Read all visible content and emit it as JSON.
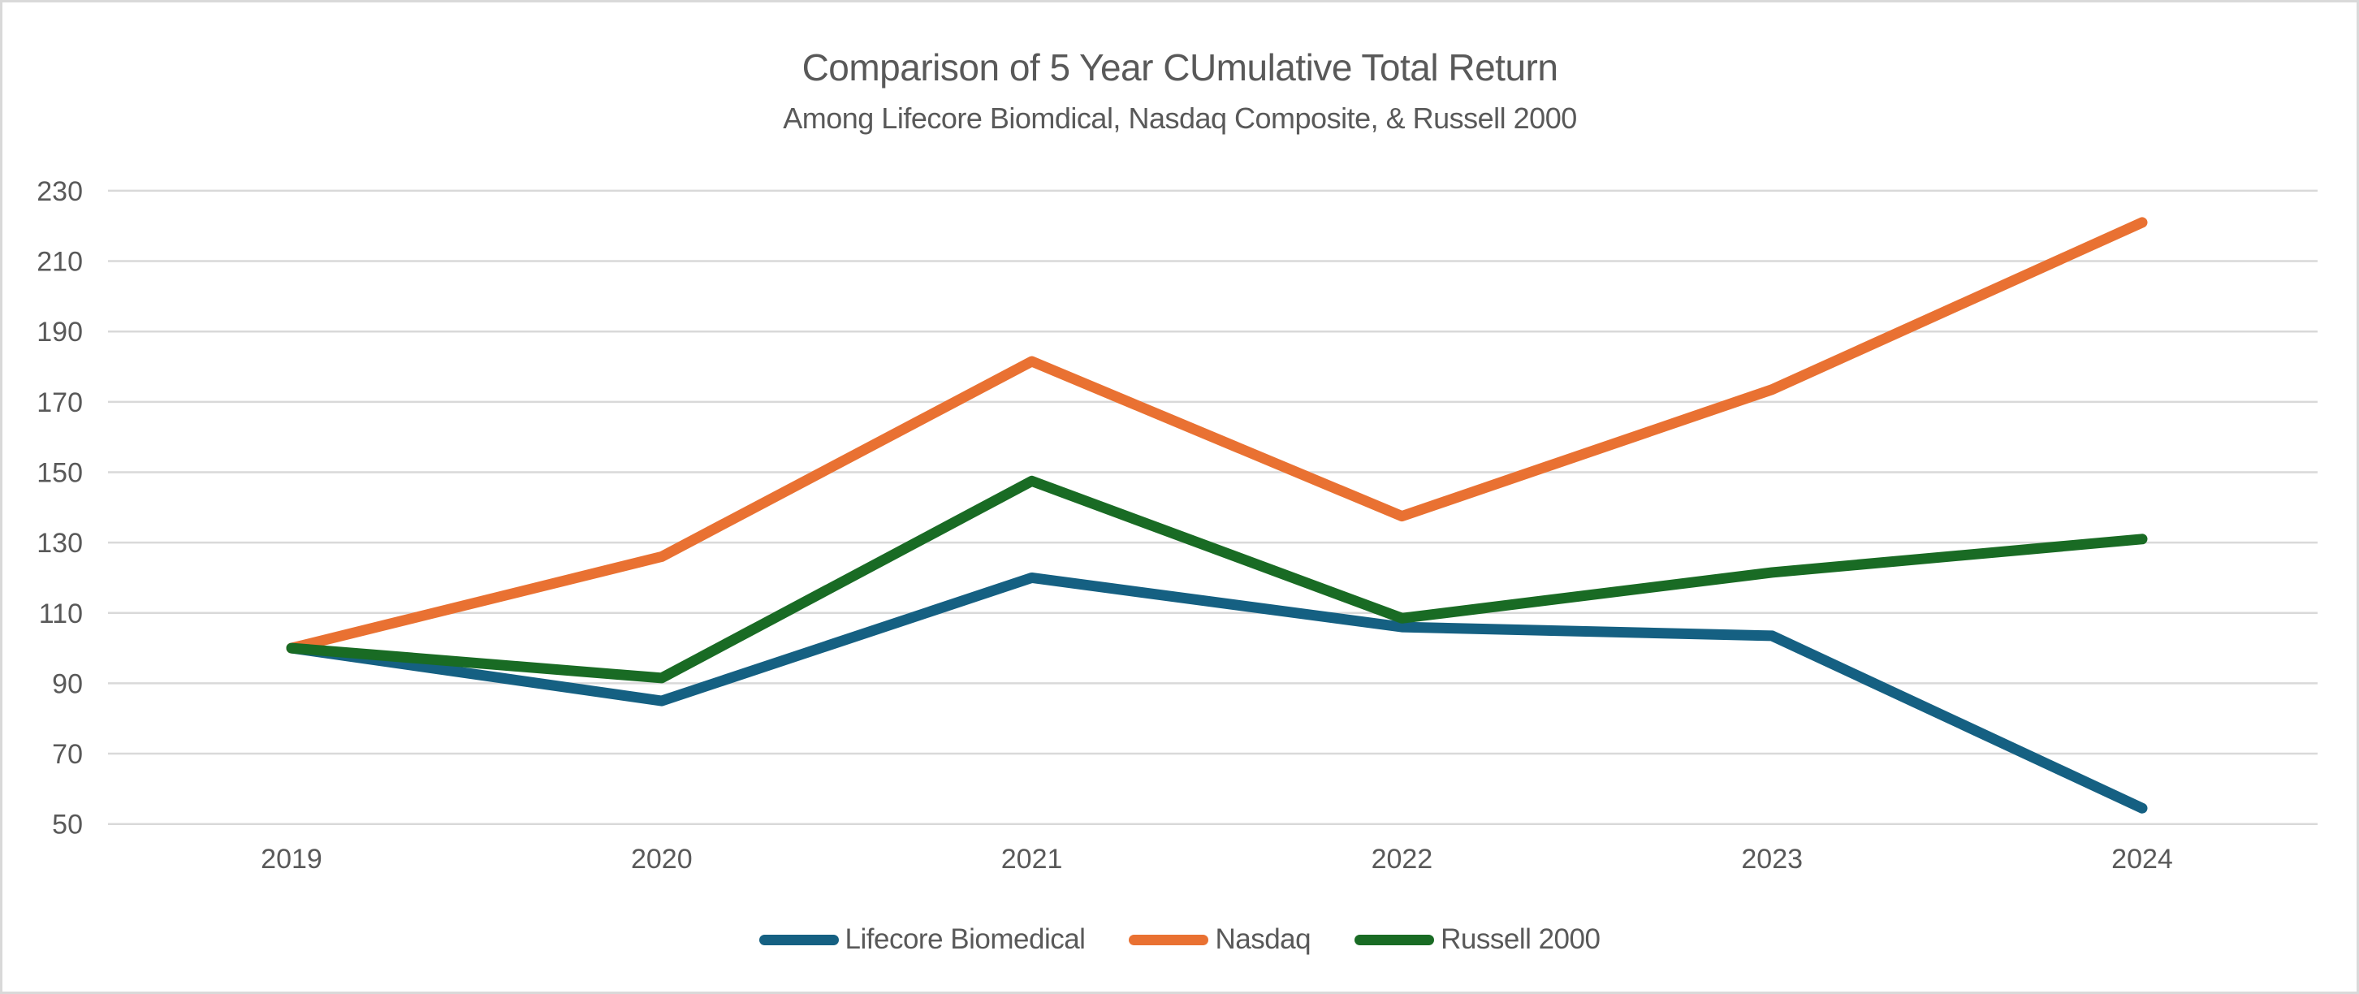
{
  "chart": {
    "title": "Comparison of 5 Year CUmulative Total Return",
    "subtitle": "Among Lifecore Biomdical, Nasdaq Composite, & Russell 2000"
  },
  "chart_data": {
    "type": "line",
    "title": "Comparison of 5 Year CUmulative Total Return",
    "subtitle": "Among Lifecore Biomdical, Nasdaq Composite, & Russell 2000",
    "x": [
      "2019",
      "2020",
      "2021",
      "2022",
      "2023",
      "2024"
    ],
    "series": [
      {
        "name": "Lifecore Biomedical",
        "color": "#156082",
        "values": [
          100,
          85,
          120,
          106,
          103.5,
          54.5
        ]
      },
      {
        "name": "Nasdaq",
        "color": "#E97132",
        "values": [
          100,
          126,
          181.5,
          137.5,
          173.5,
          221
        ]
      },
      {
        "name": "Russell 2000",
        "color": "#196B24",
        "values": [
          100,
          91.5,
          147.5,
          108.5,
          121.5,
          131
        ]
      }
    ],
    "ylim": [
      50,
      230
    ],
    "yticks": [
      50,
      70,
      90,
      110,
      130,
      150,
      170,
      190,
      210,
      230
    ],
    "grid": true,
    "legend_position": "bottom",
    "colors": {
      "gridline": "#D9D9D9",
      "text": "#595959",
      "background": "#FFFFFF",
      "page_border": "#D9D9D9"
    }
  }
}
